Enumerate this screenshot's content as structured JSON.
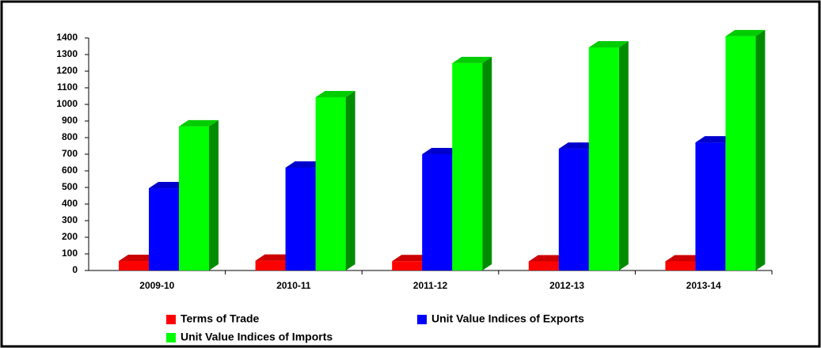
{
  "chart_data": {
    "type": "bar3d",
    "categories": [
      "2009-10",
      "2010-11",
      "2011-12",
      "2012-13",
      "2013-14"
    ],
    "series": [
      {
        "name": "Terms of Trade",
        "color": "#ff0000",
        "values": [
          57,
          59,
          56,
          55,
          55
        ]
      },
      {
        "name": "Unit Value Indices of Exports",
        "color": "#0000ff",
        "values": [
          495,
          619,
          700,
          733,
          771
        ]
      },
      {
        "name": "Unit Value Indices of Imports",
        "color": "#00ff00",
        "values": [
          867,
          1043,
          1248,
          1343,
          1410
        ]
      }
    ],
    "ylim": [
      0,
      1400
    ],
    "yticks": [
      0,
      100,
      200,
      300,
      400,
      500,
      600,
      700,
      800,
      900,
      1000,
      1100,
      1200,
      1300,
      1400
    ],
    "legend": "bottom"
  }
}
